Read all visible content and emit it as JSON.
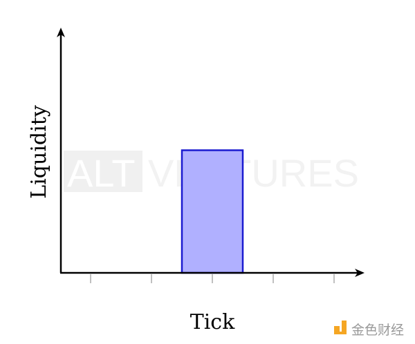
{
  "diagram": {
    "xlabel": "Tick",
    "ylabel": "Liquidity",
    "tick_count": 5,
    "bar": {
      "from_tick_index": 1.5,
      "to_tick_index": 2.5,
      "level": 0.5
    },
    "colors": {
      "bar_fill": "#b0b0ff",
      "bar_stroke": "#1a1ad0",
      "axis": "#000000",
      "tick": "#aaaaaa"
    }
  },
  "watermark": {
    "text_left": "ALT",
    "text_right": "VENTURES"
  },
  "logo": {
    "text": "金色财经",
    "color": "#f5a623"
  }
}
